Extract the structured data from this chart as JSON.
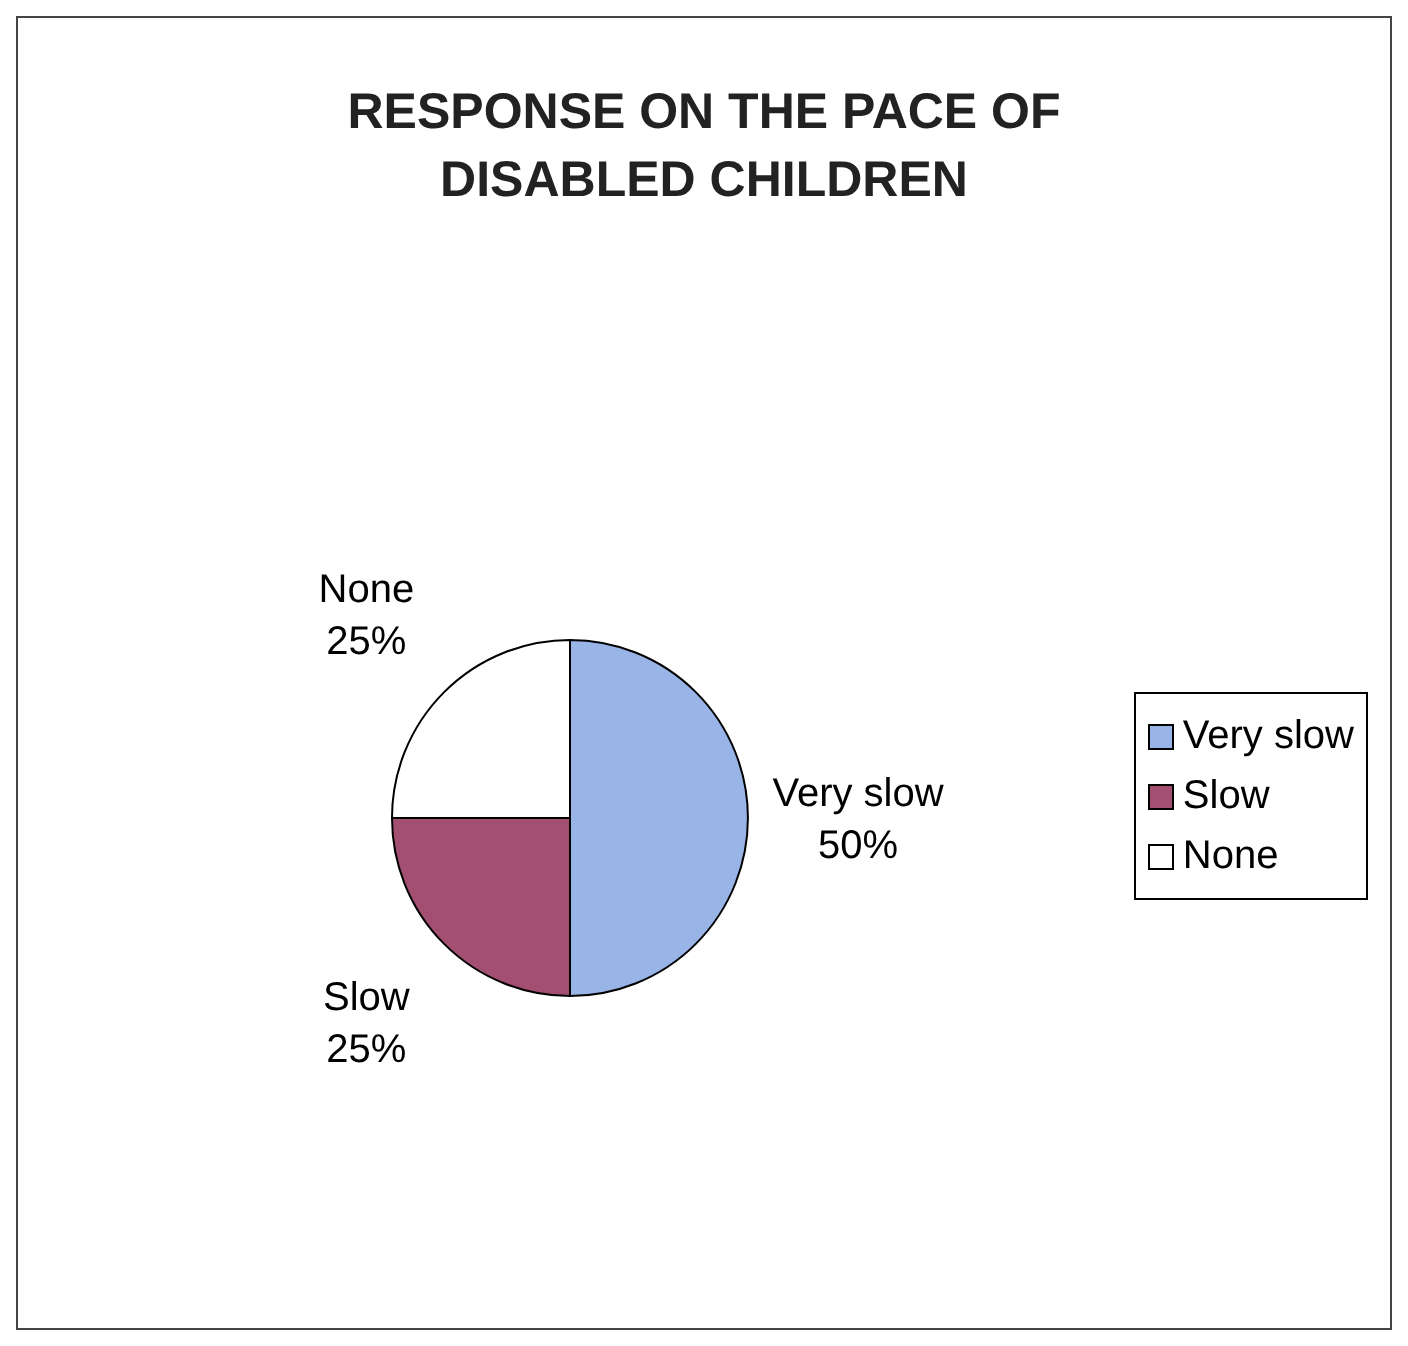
{
  "chart_data": {
    "type": "pie",
    "title": "RESPONSE ON THE PACE OF DISABLED CHILDREN",
    "categories": [
      "Very slow",
      "Slow",
      "None"
    ],
    "values": [
      50,
      25,
      25
    ],
    "value_labels": [
      "50%",
      "25%",
      "25%"
    ],
    "colors": [
      "#99b4e6",
      "#a34f72",
      "#ffffff"
    ],
    "data_labels": true,
    "legend": "right"
  }
}
